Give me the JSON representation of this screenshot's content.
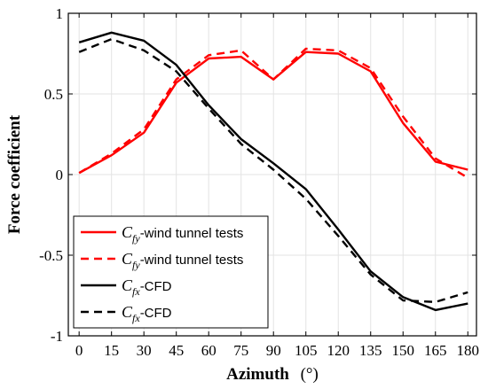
{
  "chart_data": {
    "type": "line",
    "xlabel": "Azimuth",
    "xlabel_unit": "(°)",
    "ylabel": "Force coefficient",
    "xlim": [
      -5,
      184
    ],
    "ylim": [
      -1,
      1
    ],
    "xticks": [
      0,
      15,
      30,
      45,
      60,
      75,
      90,
      105,
      120,
      135,
      150,
      165,
      180
    ],
    "yticks": [
      -1,
      -0.5,
      0,
      0.5,
      1
    ],
    "ytick_labels": [
      "-1",
      "-0.5",
      "0",
      "0.5",
      "1"
    ],
    "grid": true,
    "legend_position": "bottom-left",
    "series": [
      {
        "name": "Cfy-wind tunnel tests",
        "legend": {
          "symbol": "C",
          "subscript": "fy",
          "text": "-wind tunnel tests"
        },
        "color": "#ff0000",
        "dash": "solid",
        "x": [
          0,
          15,
          30,
          45,
          60,
          75,
          90,
          105,
          120,
          135,
          150,
          165,
          180
        ],
        "y": [
          0.01,
          0.12,
          0.26,
          0.57,
          0.72,
          0.73,
          0.59,
          0.76,
          0.75,
          0.64,
          0.32,
          0.08,
          0.03
        ]
      },
      {
        "name": "Cfy-wind tunnel tests",
        "legend": {
          "symbol": "C",
          "subscript": "fy",
          "text": "-wind tunnel tests"
        },
        "color": "#ff0000",
        "dash": "dashed",
        "x": [
          0,
          15,
          30,
          45,
          60,
          75,
          90,
          105,
          120,
          135,
          150,
          165,
          180
        ],
        "y": [
          0.01,
          0.13,
          0.28,
          0.59,
          0.74,
          0.77,
          0.59,
          0.78,
          0.77,
          0.66,
          0.36,
          0.1,
          -0.02
        ]
      },
      {
        "name": "Cfx-CFD",
        "legend": {
          "symbol": "C",
          "subscript": "fx",
          "text": "-CFD"
        },
        "color": "#000000",
        "dash": "solid",
        "x": [
          0,
          15,
          30,
          45,
          60,
          75,
          90,
          105,
          120,
          135,
          150,
          165,
          180
        ],
        "y": [
          0.82,
          0.88,
          0.83,
          0.68,
          0.43,
          0.22,
          0.07,
          -0.09,
          -0.34,
          -0.6,
          -0.76,
          -0.84,
          -0.8
        ]
      },
      {
        "name": "Cfx-CFD",
        "legend": {
          "symbol": "C",
          "subscript": "fx",
          "text": "-CFD"
        },
        "color": "#000000",
        "dash": "dashed",
        "x": [
          0,
          15,
          30,
          45,
          60,
          75,
          90,
          105,
          120,
          135,
          150,
          165,
          180
        ],
        "y": [
          0.76,
          0.84,
          0.77,
          0.64,
          0.41,
          0.19,
          0.03,
          -0.15,
          -0.38,
          -0.62,
          -0.78,
          -0.79,
          -0.73
        ]
      }
    ]
  }
}
